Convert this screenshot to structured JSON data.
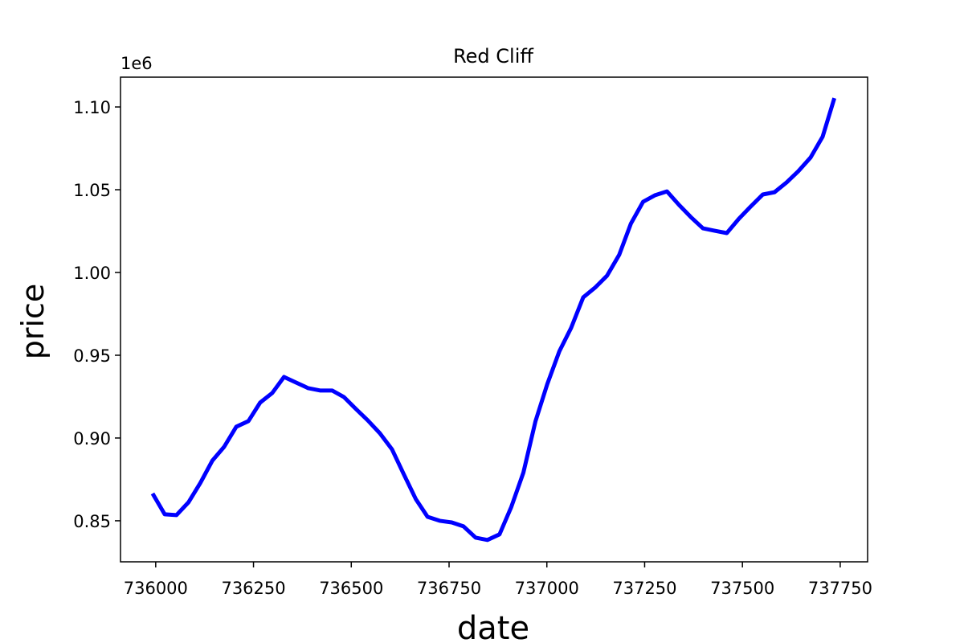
{
  "chart_data": {
    "type": "line",
    "title": "Red Cliff",
    "x_label": "date",
    "y_label": "price",
    "y_offset_label": "1e6",
    "x": [
      735992,
      736023,
      736053,
      736084,
      736114,
      736145,
      736175,
      736206,
      736237,
      736267,
      736298,
      736328,
      736359,
      736390,
      736420,
      736451,
      736481,
      736512,
      736542,
      736573,
      736604,
      736634,
      736665,
      736695,
      736726,
      736757,
      736787,
      736818,
      736848,
      736879,
      736909,
      736940,
      736971,
      737001,
      737032,
      737062,
      737093,
      737123,
      737154,
      737185,
      737215,
      737246,
      737276,
      737307,
      737338,
      737368,
      737399,
      737429,
      737460,
      737491,
      737521,
      737552,
      737582,
      737613,
      737643,
      737674,
      737705,
      737735
    ],
    "series": [
      {
        "color": "#0000ff",
        "values": [
          866500,
          853900,
          853400,
          861200,
          872800,
          886400,
          894700,
          906800,
          910200,
          921400,
          927200,
          936900,
          933500,
          930100,
          928700,
          928700,
          924800,
          917500,
          910700,
          902900,
          893200,
          878200,
          863100,
          852400,
          850000,
          849000,
          846600,
          839800,
          838400,
          841800,
          858300,
          879100,
          910200,
          932500,
          952400,
          966500,
          985000,
          990800,
          998100,
          1010700,
          1029600,
          1042700,
          1046600,
          1049000,
          1040800,
          1033500,
          1026700,
          1025200,
          1023800,
          1032500,
          1039800,
          1047100,
          1048500,
          1054400,
          1061200,
          1069400,
          1082000,
          1105300
        ]
      }
    ],
    "xlim": [
      735910,
      737820
    ],
    "ylim": [
      825200,
      1118000
    ],
    "xticks": [
      736000,
      736250,
      736500,
      736750,
      737000,
      737250,
      737500,
      737750
    ],
    "yticks": [
      {
        "value": 850000,
        "label": "0.85"
      },
      {
        "value": 900000,
        "label": "0.90"
      },
      {
        "value": 950000,
        "label": "0.95"
      },
      {
        "value": 1000000,
        "label": "1.00"
      },
      {
        "value": 1050000,
        "label": "1.05"
      },
      {
        "value": 1100000,
        "label": "1.10"
      }
    ]
  }
}
